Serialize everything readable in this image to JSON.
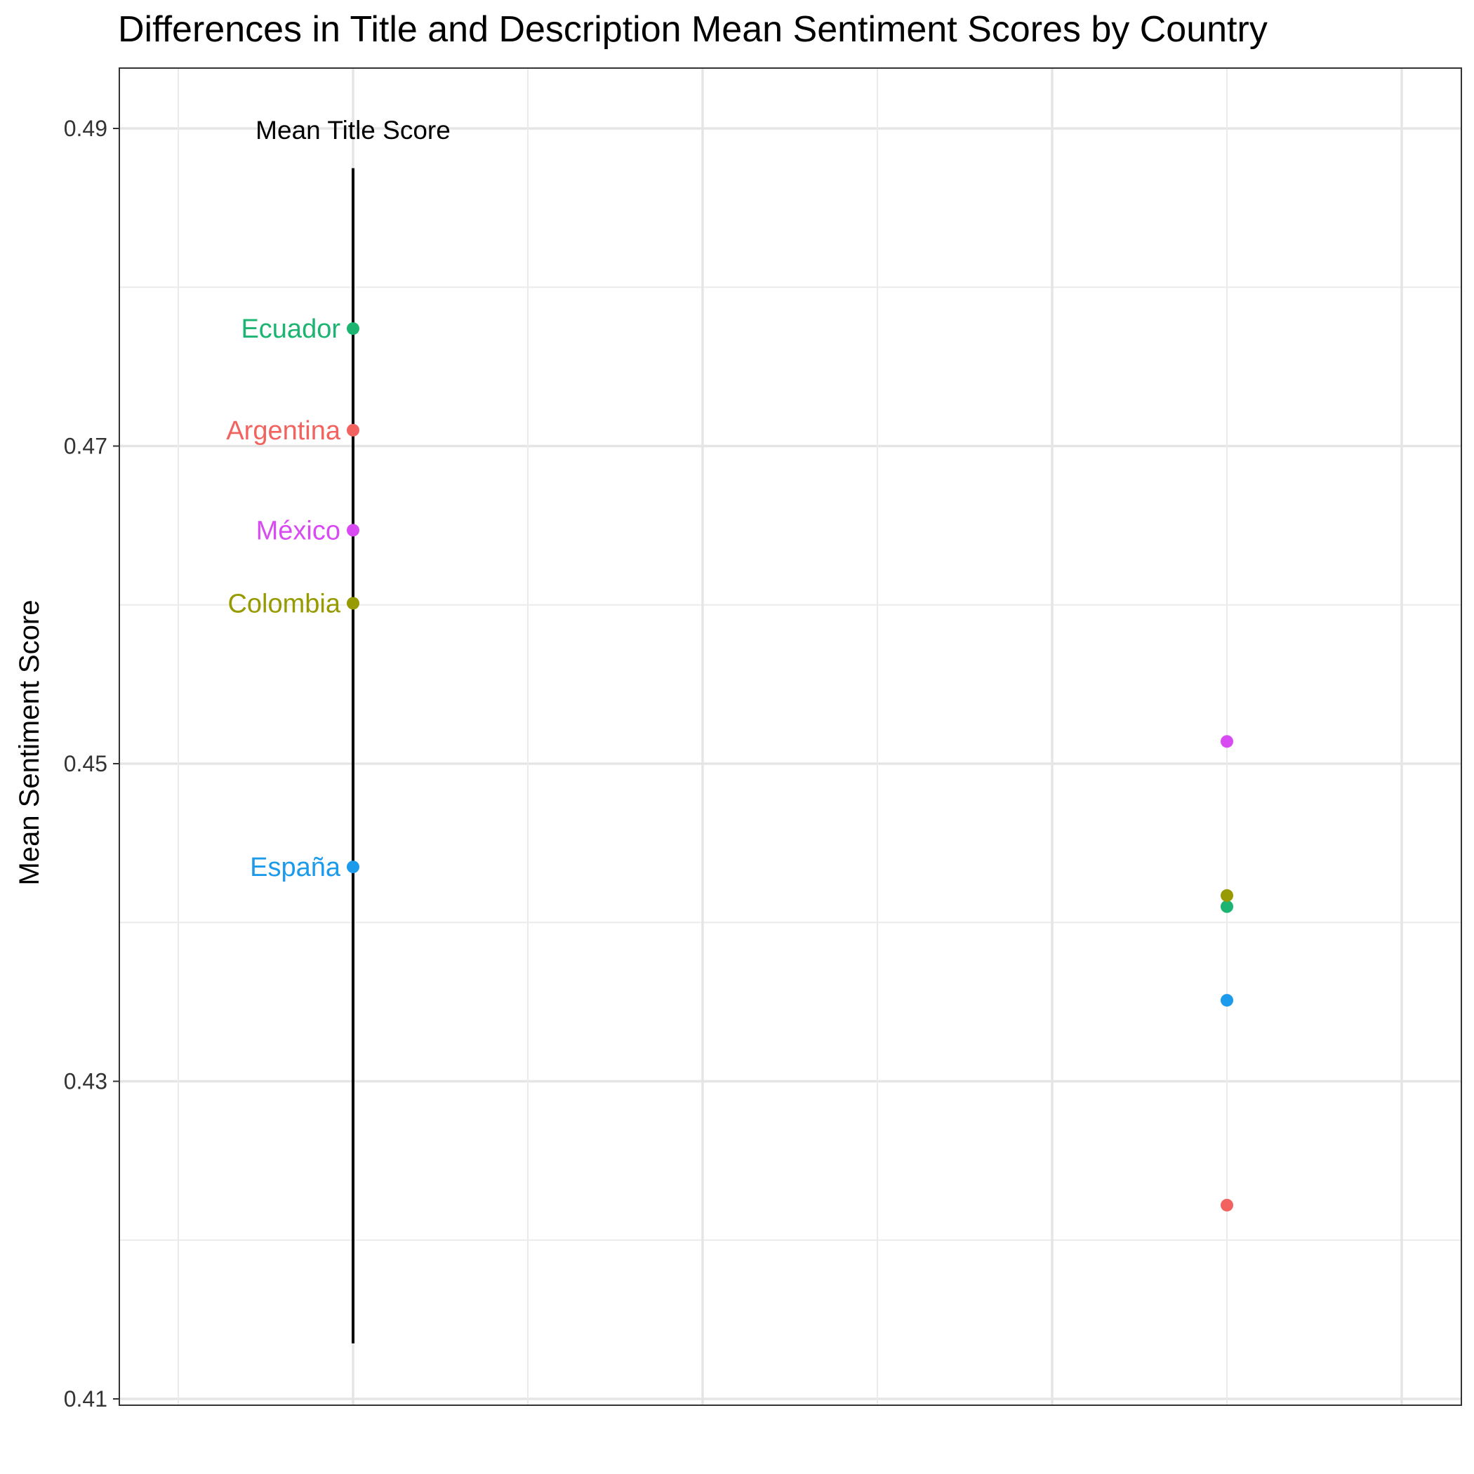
{
  "chart_data": {
    "type": "scatter",
    "title": "Differences in Title and Description Mean Sentiment Scores by Country",
    "ylabel": "Mean Sentiment Score",
    "xlabel": "",
    "ylim": [
      0.41,
      0.494
    ],
    "y_ticks": [
      0.41,
      0.43,
      0.45,
      0.47,
      0.49
    ],
    "y_tick_labels": [
      "0.41",
      "0.43",
      "0.45",
      "0.47",
      "0.49"
    ],
    "grid": true,
    "column_label": "Mean Title Score",
    "title_axis_range": [
      0.4135,
      0.4875
    ],
    "series": [
      {
        "name": "Ecuador",
        "color": "#1BB471",
        "title_score": 0.4774,
        "description_score": 0.441
      },
      {
        "name": "Argentina",
        "color": "#F2635F",
        "title_score": 0.471,
        "description_score": 0.4222
      },
      {
        "name": "México",
        "color": "#D84BF2",
        "title_score": 0.4647,
        "description_score": 0.4514
      },
      {
        "name": "Colombia",
        "color": "#979A00",
        "title_score": 0.4601,
        "description_score": 0.4417
      },
      {
        "name": "España",
        "color": "#1C9AEC",
        "title_score": 0.4435,
        "description_score": 0.4351
      }
    ]
  }
}
